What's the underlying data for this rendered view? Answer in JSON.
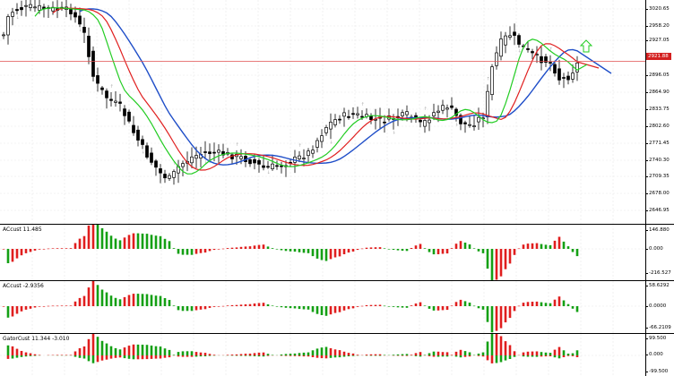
{
  "colors": {
    "background": "#ffffff",
    "grid": "#e8e8e8",
    "candle": "#000000",
    "jaw": "#1f4ec8",
    "teeth": "#e02020",
    "lips": "#22cc22",
    "fractal": "#a8a8a8",
    "price_line": "#e05050",
    "bar_up": "#14a014",
    "bar_down": "#e01e1e",
    "signal_arrow": "#22cc22"
  },
  "main_chart": {
    "price_axis_labels": [
      "3020.65",
      "2958.20",
      "2927.05",
      "2896.05",
      "2864.90",
      "2833.75",
      "2802.60",
      "2771.45",
      "2740.30",
      "2709.35",
      "2678.00",
      "2646.95"
    ],
    "current_price": "2921.88",
    "current_price_value": 2921.88,
    "y_range": [
      2630,
      3032
    ]
  },
  "panels": [
    {
      "title": "ACcust 11.485",
      "axis_labels": [
        "146.880",
        "0.000",
        "-216.527"
      ]
    },
    {
      "title": "ACcust -2.9356",
      "axis_labels": [
        "58.6292",
        "0.0000",
        "-66.2109"
      ]
    },
    {
      "title": "GatorCust 11.344 -3.010",
      "axis_labels": [
        "99.500",
        "0.000",
        "-99.500"
      ]
    }
  ]
}
